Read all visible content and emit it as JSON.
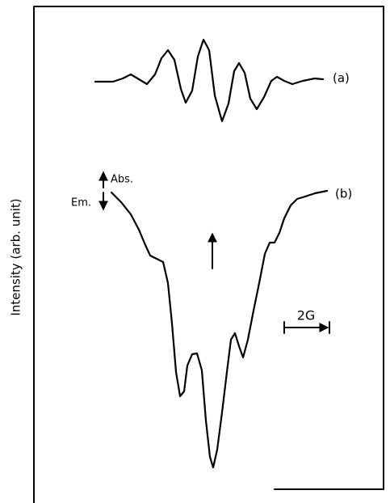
{
  "figure": {
    "y_axis_label": "Intensity (arb. unit)",
    "curve_a_label": "(a)",
    "curve_b_label": "(b)",
    "abs_label": "Abs.",
    "em_label": "Em.",
    "scale_label": "2G"
  }
}
